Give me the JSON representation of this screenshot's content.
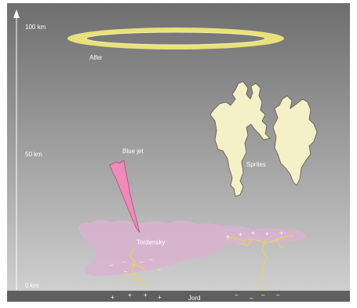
{
  "axis": {
    "ticks": [
      {
        "label": "100 km"
      },
      {
        "label": "50 km"
      },
      {
        "label": "0 km"
      }
    ]
  },
  "labels": {
    "elves": "Alfer",
    "blue_jet": "Blue jet",
    "sprites": "Sprites",
    "thundercloud": "Tordensky",
    "ground": "Jord"
  },
  "charges": {
    "positive": "+",
    "negative": "–"
  },
  "colors": {
    "sky_top": "#6e6e6e",
    "sky_bottom": "#cfcfcf",
    "ground": "#5f5f5f",
    "elves_ring": "#e9e27a",
    "blue_jet": "#f08ab8",
    "sprites": "#f4f0c8",
    "cloud": "#d9b3cf",
    "lightning": "#e4d65a",
    "text": "#ffffff"
  }
}
